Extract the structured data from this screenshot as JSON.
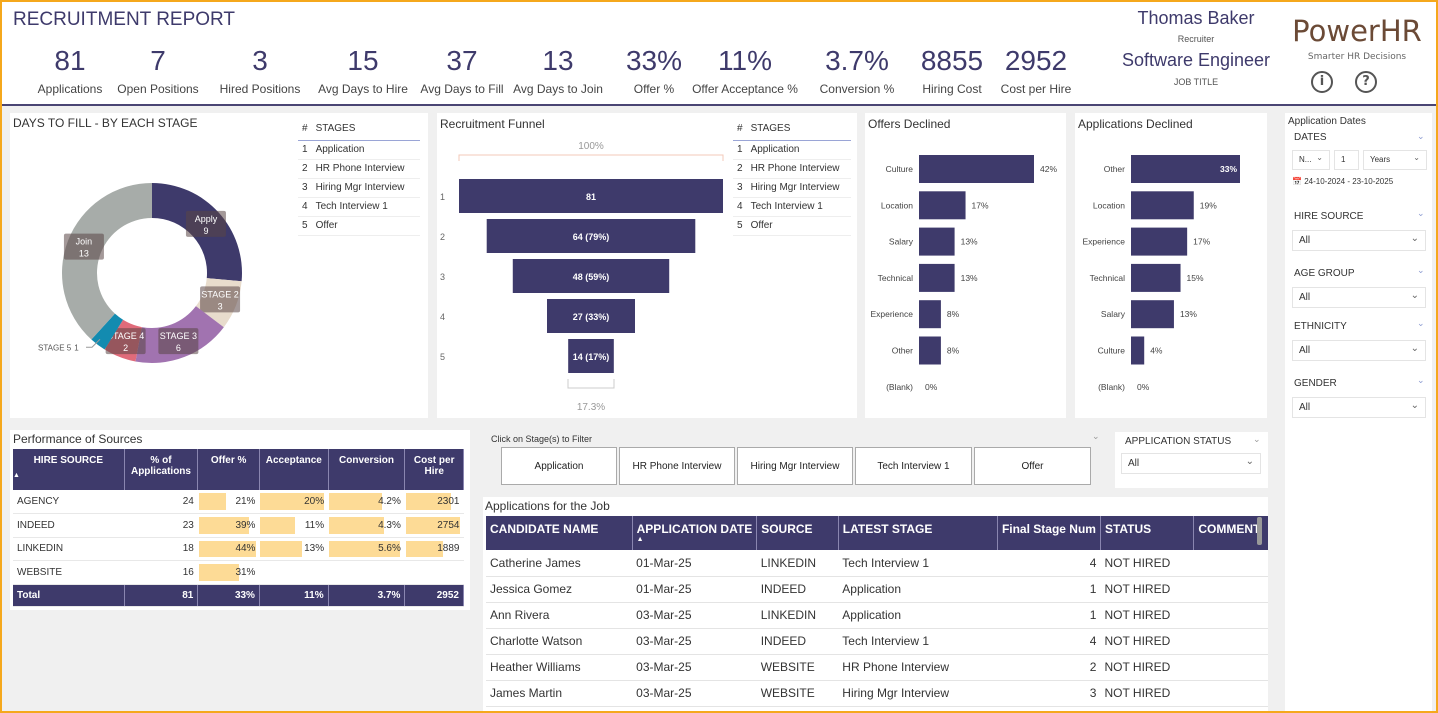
{
  "header": {
    "title": "RECRUITMENT REPORT",
    "kpis": [
      {
        "value": "81",
        "label": "Applications"
      },
      {
        "value": "7",
        "label": "Open Positions"
      },
      {
        "value": "3",
        "label": "Hired Positions"
      },
      {
        "value": "15",
        "label": "Avg Days to Hire"
      },
      {
        "value": "37",
        "label": "Avg Days to Fill"
      },
      {
        "value": "13",
        "label": "Avg Days to Join"
      },
      {
        "value": "33%",
        "label": "Offer %"
      },
      {
        "value": "11%",
        "label": "Offer Acceptance %"
      },
      {
        "value": "3.7%",
        "label": "Conversion %"
      },
      {
        "value": "8855",
        "label": "Hiring Cost"
      },
      {
        "value": "2952",
        "label": "Cost per Hire"
      }
    ],
    "recruiter_name": "Thomas Baker",
    "recruiter_label": "Recruiter",
    "job_title": "Software Engineer",
    "job_title_label": "JOB TITLE",
    "brand": "PowerHR",
    "tagline": "Smarter HR Decisions",
    "info_icon": "info-icon",
    "help_icon": "help-icon"
  },
  "colors": {
    "primary": "#3e3a6b",
    "frame": "#f5a81c",
    "bar": "#fddb96",
    "brand": "#6b4a36"
  },
  "stages_list": {
    "col_num": "#",
    "col_name": "STAGES",
    "items": [
      {
        "n": "1",
        "name": "Application"
      },
      {
        "n": "2",
        "name": "HR Phone Interview"
      },
      {
        "n": "3",
        "name": "Hiring Mgr Interview"
      },
      {
        "n": "4",
        "name": "Tech Interview 1"
      },
      {
        "n": "5",
        "name": "Offer"
      }
    ]
  },
  "chart_data": [
    {
      "type": "pie",
      "title": "DAYS TO FILL - BY EACH STAGE",
      "donut": true,
      "slices": [
        {
          "label": "Apply",
          "value": 9,
          "color": "#3e3a6b"
        },
        {
          "label": "STAGE 2",
          "value": 3,
          "color": "#e8dccc"
        },
        {
          "label": "STAGE 3",
          "value": 6,
          "color": "#a173b0"
        },
        {
          "label": "STAGE 4",
          "value": 2,
          "color": "#e06b7a"
        },
        {
          "label": "STAGE 5",
          "value": 1,
          "color": "#138bb0"
        },
        {
          "label": "Join",
          "value": 13,
          "color": "#a7aca9"
        }
      ]
    },
    {
      "type": "bar",
      "title": "Recruitment Funnel",
      "orientation": "funnel",
      "top_label": "100%",
      "bottom_label": "17.3%",
      "categories": [
        "1",
        "2",
        "3",
        "4",
        "5"
      ],
      "values": [
        81,
        64,
        48,
        27,
        14
      ],
      "data_labels": [
        "81",
        "64 (79%)",
        "48 (59%)",
        "27 (33%)",
        "14 (17%)"
      ]
    },
    {
      "type": "bar",
      "title": "Offers Declined",
      "orientation": "horizontal",
      "categories": [
        "Culture",
        "Location",
        "Salary",
        "Technical",
        "Experience",
        "Other",
        "(Blank)"
      ],
      "values": [
        42,
        17,
        13,
        13,
        8,
        8,
        0
      ],
      "data_labels": [
        "42%",
        "17%",
        "13%",
        "13%",
        "8%",
        "8%",
        "0%"
      ]
    },
    {
      "type": "bar",
      "title": "Applications Declined",
      "orientation": "horizontal",
      "categories": [
        "Other",
        "Location",
        "Experience",
        "Technical",
        "Salary",
        "Culture",
        "(Blank)"
      ],
      "values": [
        33,
        19,
        17,
        15,
        13,
        4,
        0
      ],
      "data_labels": [
        "33%",
        "19%",
        "17%",
        "15%",
        "13%",
        "4%",
        "0%"
      ]
    }
  ],
  "sources": {
    "title": "Performance of Sources",
    "columns": [
      "HIRE SOURCE",
      "% of Applications",
      "Offer %",
      "Acceptance",
      "Conversion",
      "Cost per Hire"
    ],
    "rows": [
      [
        "AGENCY",
        "24",
        "21%",
        "20%",
        "4.2%",
        "2301"
      ],
      [
        "INDEED",
        "23",
        "39%",
        "11%",
        "4.3%",
        "2754"
      ],
      [
        "LINKEDIN",
        "18",
        "44%",
        "13%",
        "5.6%",
        "1889"
      ],
      [
        "WEBSITE",
        "16",
        "31%",
        "",
        "",
        ""
      ]
    ],
    "bar_fill": [
      [
        null,
        null,
        0.48,
        1.0,
        0.75,
        0.84
      ],
      [
        null,
        null,
        0.89,
        0.55,
        0.77,
        1.0
      ],
      [
        null,
        null,
        1.0,
        0.65,
        1.0,
        0.69
      ],
      [
        null,
        null,
        0.7,
        null,
        null,
        null
      ]
    ],
    "total": [
      "Total",
      "81",
      "33%",
      "11%",
      "3.7%",
      "2952"
    ]
  },
  "stage_filter": {
    "label": "Click on Stage(s) to Filter",
    "buttons": [
      "Application",
      "HR Phone Interview",
      "Hiring Mgr Interview",
      "Tech Interview 1",
      "Offer"
    ]
  },
  "app_status": {
    "label": "APPLICATION STATUS",
    "value": "All"
  },
  "applications": {
    "title": "Applications for the Job",
    "columns": [
      "CANDIDATE NAME",
      "APPLICATION DATE",
      "SOURCE",
      "LATEST STAGE",
      "Final Stage Num",
      "STATUS",
      "COMMENT"
    ],
    "rows": [
      [
        "Catherine James",
        "01-Mar-25",
        "LINKEDIN",
        "Tech Interview 1",
        "4",
        "NOT HIRED",
        ""
      ],
      [
        "Jessica Gomez",
        "01-Mar-25",
        "INDEED",
        "Application",
        "1",
        "NOT HIRED",
        ""
      ],
      [
        "Ann Rivera",
        "03-Mar-25",
        "LINKEDIN",
        "Application",
        "1",
        "NOT HIRED",
        ""
      ],
      [
        "Charlotte Watson",
        "03-Mar-25",
        "INDEED",
        "Tech Interview 1",
        "4",
        "NOT HIRED",
        ""
      ],
      [
        "Heather Williams",
        "03-Mar-25",
        "WEBSITE",
        "HR Phone Interview",
        "2",
        "NOT HIRED",
        ""
      ],
      [
        "James Martin",
        "03-Mar-25",
        "WEBSITE",
        "Hiring Mgr Interview",
        "3",
        "NOT HIRED",
        ""
      ]
    ]
  },
  "filters": {
    "title": "Application Dates",
    "dates_label": "DATES",
    "relative": "N...",
    "count": "1",
    "unit": "Years",
    "range": "24-10-2024 - 23-10-2025",
    "dropdowns": [
      {
        "label": "HIRE SOURCE",
        "value": "All"
      },
      {
        "label": "AGE GROUP",
        "value": "All"
      },
      {
        "label": "ETHNICITY",
        "value": "All"
      },
      {
        "label": "GENDER",
        "value": "All"
      }
    ]
  }
}
